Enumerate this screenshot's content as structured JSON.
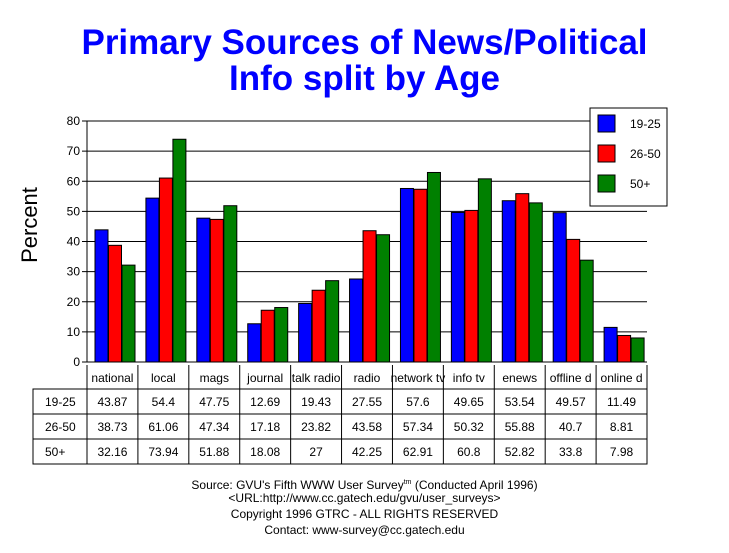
{
  "title_line1": "Primary Sources of News/Political",
  "title_line2": "Info split by Age",
  "chart_data": {
    "type": "bar",
    "title": "Primary Sources of News/Political Info split by Age",
    "ylabel": "Percent",
    "xlabel": "",
    "ylim": [
      0,
      80
    ],
    "yticks": [
      0,
      10,
      20,
      30,
      40,
      50,
      60,
      70,
      80
    ],
    "grid": true,
    "legend_position": "top-right",
    "categories": [
      "national",
      "local",
      "mags",
      "journal",
      "talk  radio",
      "radio",
      "network tv",
      "info tv",
      "enews",
      "offline d",
      "online d"
    ],
    "series": [
      {
        "name": "19-25",
        "color": "#0000ff",
        "values": [
          43.87,
          54.4,
          47.75,
          12.69,
          19.43,
          27.55,
          57.6,
          49.65,
          53.54,
          49.57,
          11.49
        ]
      },
      {
        "name": "26-50",
        "color": "#ff0000",
        "values": [
          38.73,
          61.06,
          47.34,
          17.18,
          23.82,
          43.58,
          57.34,
          50.32,
          55.88,
          40.7,
          8.81
        ]
      },
      {
        "name": "50+",
        "color": "#008000",
        "values": [
          32.16,
          73.94,
          51.88,
          18.08,
          27,
          42.25,
          62.91,
          60.8,
          52.82,
          33.8,
          7.98
        ]
      }
    ]
  },
  "table": {
    "rows": [
      {
        "label": "19-25",
        "values": [
          "43.87",
          "54.4",
          "47.75",
          "12.69",
          "19.43",
          "27.55",
          "57.6",
          "49.65",
          "53.54",
          "49.57",
          "11.49"
        ]
      },
      {
        "label": "26-50",
        "values": [
          "38.73",
          "61.06",
          "47.34",
          "17.18",
          "23.82",
          "43.58",
          "57.34",
          "50.32",
          "55.88",
          "40.7",
          "8.81"
        ]
      },
      {
        "label": "50+",
        "values": [
          "32.16",
          "73.94",
          "51.88",
          "18.08",
          "27",
          "42.25",
          "62.91",
          "60.8",
          "52.82",
          "33.8",
          "7.98"
        ]
      }
    ]
  },
  "source": {
    "line1_prefix": "Source: GVU's Fifth WWW User Survey",
    "line1_sup": "tm",
    "line1_suffix": "  (Conducted April 1996)",
    "line2": "<URL:http://www.cc.gatech.edu/gvu/user_surveys>",
    "line3": "Copyright 1996 GTRC -  ALL RIGHTS RESERVED",
    "line4": "Contact: www-survey@cc.gatech.edu"
  }
}
